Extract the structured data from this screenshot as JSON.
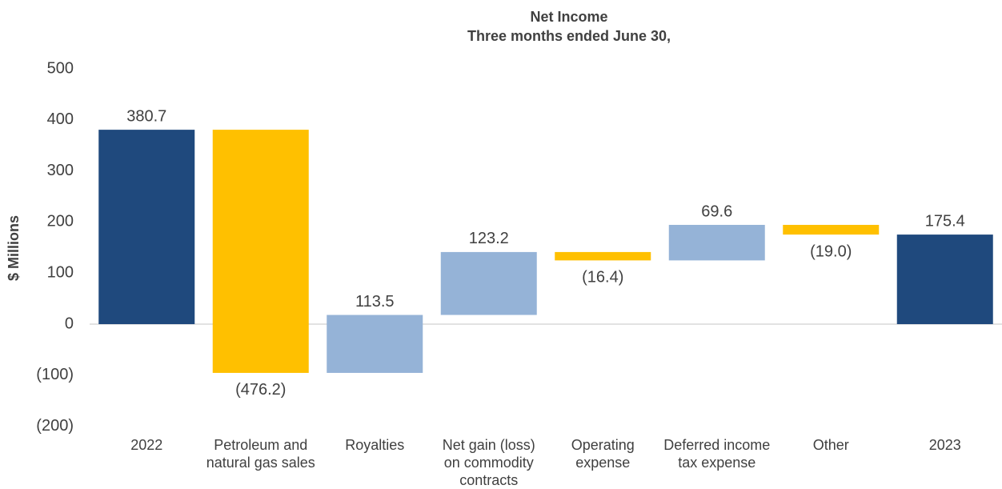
{
  "chart_data": {
    "type": "waterfall",
    "title": "Net Income",
    "subtitle": "Three months ended June 30,",
    "y_label": "$ Millions",
    "categories": [
      "2022",
      "Petroleum and natural gas sales",
      "Royalties",
      "Net gain (loss) on commodity contracts",
      "Operating expense",
      "Deferred income tax expense",
      "Other",
      "2023"
    ],
    "values": [
      380.7,
      -476.2,
      113.5,
      123.2,
      -16.4,
      69.6,
      -19.0,
      175.4
    ],
    "value_labels": [
      "380.7",
      "(476.2)",
      "113.5",
      "123.2",
      "(16.4)",
      "69.6",
      "(19.0)",
      "175.4"
    ],
    "totals": [
      true,
      false,
      false,
      false,
      false,
      false,
      false,
      true
    ],
    "colors": [
      "#1f497d",
      "#ffc000",
      "#95b3d7",
      "#95b3d7",
      "#ffc000",
      "#95b3d7",
      "#ffc000",
      "#1f497d"
    ],
    "ylim": [
      -200,
      500
    ],
    "yticks": [
      {
        "value": -200,
        "label": "(200)"
      },
      {
        "value": -100,
        "label": "(100)"
      },
      0,
      100,
      200,
      300,
      400,
      500
    ],
    "grid": false
  }
}
